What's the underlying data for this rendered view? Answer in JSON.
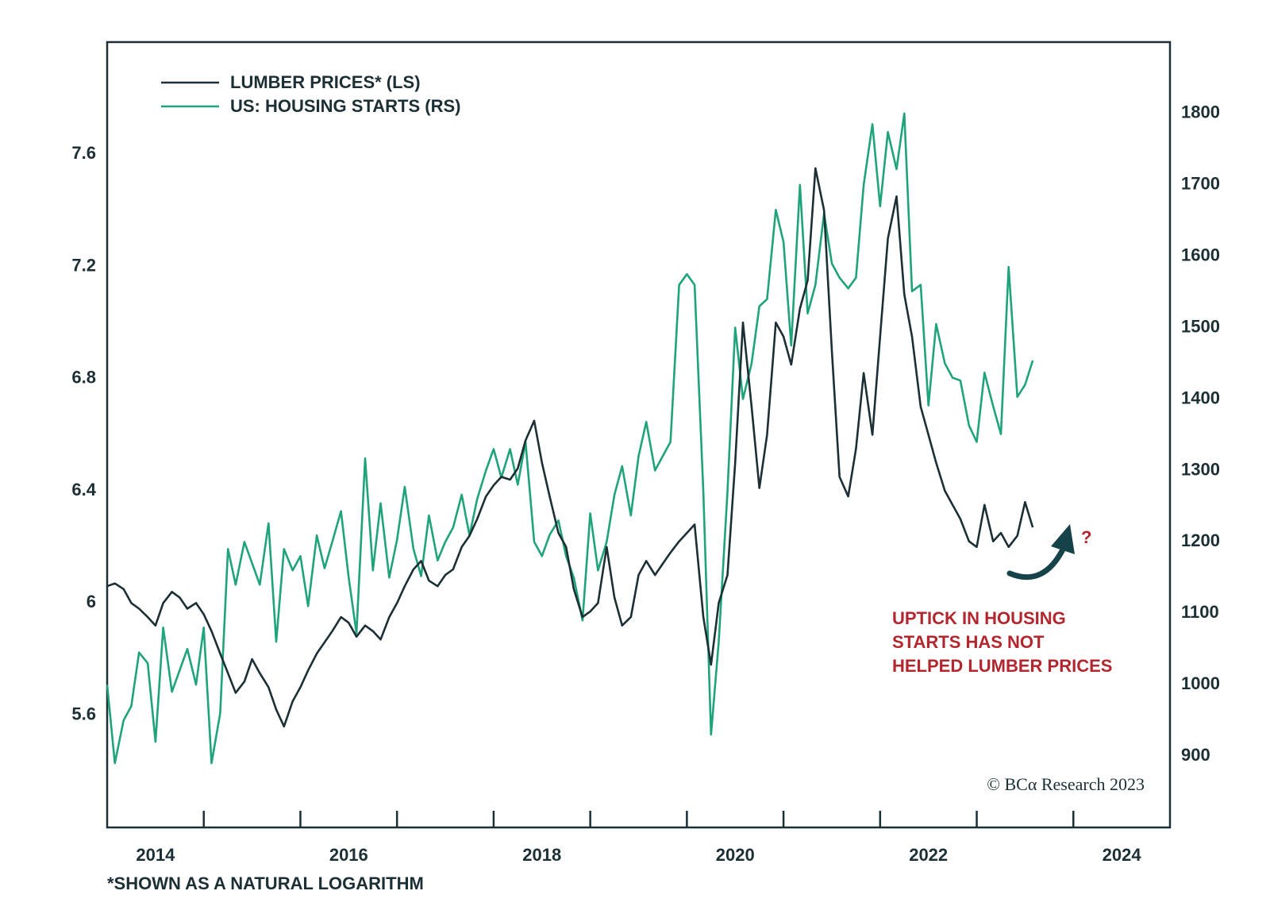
{
  "chart_data": {
    "type": "line",
    "legend": "top-left",
    "footnote": "*SHOWN AS A NATURAL LOGARITHM",
    "source": "© BCα Research 2023",
    "annotation": {
      "lines": [
        "UPTICK IN HOUSING",
        "STARTS HAS NOT",
        "HELPED LUMBER PRICES"
      ],
      "mark": "?",
      "color": "#b3262e"
    },
    "x": [
      2014.0,
      2014.08,
      2014.17,
      2014.25,
      2014.33,
      2014.42,
      2014.5,
      2014.58,
      2014.67,
      2014.75,
      2014.83,
      2014.92,
      2015.0,
      2015.08,
      2015.17,
      2015.25,
      2015.33,
      2015.42,
      2015.5,
      2015.58,
      2015.67,
      2015.75,
      2015.83,
      2015.92,
      2016.0,
      2016.08,
      2016.17,
      2016.25,
      2016.33,
      2016.42,
      2016.5,
      2016.58,
      2016.67,
      2016.75,
      2016.83,
      2016.92,
      2017.0,
      2017.08,
      2017.17,
      2017.25,
      2017.33,
      2017.42,
      2017.5,
      2017.58,
      2017.67,
      2017.75,
      2017.83,
      2017.92,
      2018.0,
      2018.08,
      2018.17,
      2018.25,
      2018.33,
      2018.42,
      2018.5,
      2018.58,
      2018.67,
      2018.75,
      2018.83,
      2018.92,
      2019.0,
      2019.08,
      2019.17,
      2019.25,
      2019.33,
      2019.42,
      2019.5,
      2019.58,
      2019.67,
      2019.75,
      2019.83,
      2019.92,
      2020.0,
      2020.08,
      2020.17,
      2020.25,
      2020.33,
      2020.42,
      2020.5,
      2020.58,
      2020.67,
      2020.75,
      2020.83,
      2020.92,
      2021.0,
      2021.08,
      2021.17,
      2021.25,
      2021.33,
      2021.42,
      2021.5,
      2021.58,
      2021.67,
      2021.75,
      2021.83,
      2021.92,
      2022.0,
      2022.08,
      2022.17,
      2022.25,
      2022.33,
      2022.42,
      2022.5,
      2022.58,
      2022.67,
      2022.75,
      2022.83,
      2022.92,
      2023.0,
      2023.08,
      2023.17,
      2023.25,
      2023.33,
      2023.42,
      2023.5,
      2023.58
    ],
    "series": [
      {
        "name": "LUMBER PRICES* (LS)",
        "color": "#1b2f35",
        "values": [
          6.06,
          6.07,
          6.05,
          6.0,
          5.98,
          5.95,
          5.92,
          6.0,
          6.04,
          6.02,
          5.98,
          6.0,
          5.96,
          5.9,
          5.82,
          5.75,
          5.68,
          5.72,
          5.8,
          5.75,
          5.7,
          5.62,
          5.56,
          5.65,
          5.7,
          5.76,
          5.82,
          5.86,
          5.9,
          5.95,
          5.93,
          5.88,
          5.92,
          5.9,
          5.87,
          5.95,
          6.0,
          6.06,
          6.12,
          6.15,
          6.08,
          6.06,
          6.1,
          6.12,
          6.2,
          6.24,
          6.3,
          6.38,
          6.42,
          6.45,
          6.44,
          6.48,
          6.58,
          6.65,
          6.5,
          6.38,
          6.25,
          6.2,
          6.05,
          5.95,
          5.97,
          6.0,
          6.2,
          6.02,
          5.92,
          5.95,
          6.1,
          6.15,
          6.1,
          6.14,
          6.18,
          6.22,
          6.25,
          6.28,
          5.95,
          5.78,
          6.0,
          6.1,
          6.5,
          7.0,
          6.7,
          6.41,
          6.6,
          7.0,
          6.95,
          6.85,
          7.05,
          7.15,
          7.55,
          7.4,
          6.9,
          6.45,
          6.38,
          6.55,
          6.82,
          6.6,
          6.95,
          7.3,
          7.45,
          7.1,
          6.95,
          6.7,
          6.6,
          6.5,
          6.4,
          6.35,
          6.3,
          6.22,
          6.2,
          6.35,
          6.22,
          6.25,
          6.2,
          6.24,
          6.36,
          6.27
        ]
      },
      {
        "name": "US: HOUSING STARTS (RS)",
        "color": "#1fa37a",
        "axis": "y2",
        "values": [
          1000,
          890,
          950,
          970,
          1045,
          1030,
          920,
          1080,
          990,
          1020,
          1050,
          1000,
          1080,
          890,
          960,
          1190,
          1140,
          1200,
          1170,
          1140,
          1226,
          1060,
          1190,
          1160,
          1180,
          1110,
          1209,
          1163,
          1200,
          1243,
          1150,
          1072,
          1317,
          1160,
          1254,
          1150,
          1203,
          1277,
          1190,
          1152,
          1237,
          1174,
          1200,
          1220,
          1266,
          1209,
          1260,
          1300,
          1330,
          1290,
          1330,
          1280,
          1340,
          1200,
          1180,
          1210,
          1230,
          1180,
          1150,
          1090,
          1240,
          1160,
          1200,
          1266,
          1306,
          1237,
          1320,
          1368,
          1300,
          1320,
          1340,
          1560,
          1575,
          1560,
          1270,
          930,
          1060,
          1270,
          1500,
          1400,
          1450,
          1530,
          1540,
          1665,
          1620,
          1475,
          1700,
          1520,
          1560,
          1660,
          1590,
          1570,
          1555,
          1570,
          1700,
          1785,
          1670,
          1774,
          1722,
          1800,
          1551,
          1560,
          1391,
          1505,
          1450,
          1430,
          1426,
          1363,
          1340,
          1437,
          1390,
          1351,
          1585,
          1403,
          1420,
          1454
        ]
      }
    ],
    "xlim": [
      2014,
      2025
    ],
    "xticks": [
      2014,
      2015,
      2016,
      2017,
      2018,
      2019,
      2020,
      2021,
      2022,
      2023,
      2024
    ],
    "ylim": [
      5.2,
      8.0
    ],
    "yticks": [
      5.6,
      6.0,
      6.4,
      6.8,
      7.2,
      7.6
    ],
    "y2lim": [
      800,
      1900
    ],
    "y2ticks": [
      900,
      1000,
      1100,
      1200,
      1300,
      1400,
      1500,
      1600,
      1700,
      1800
    ]
  }
}
